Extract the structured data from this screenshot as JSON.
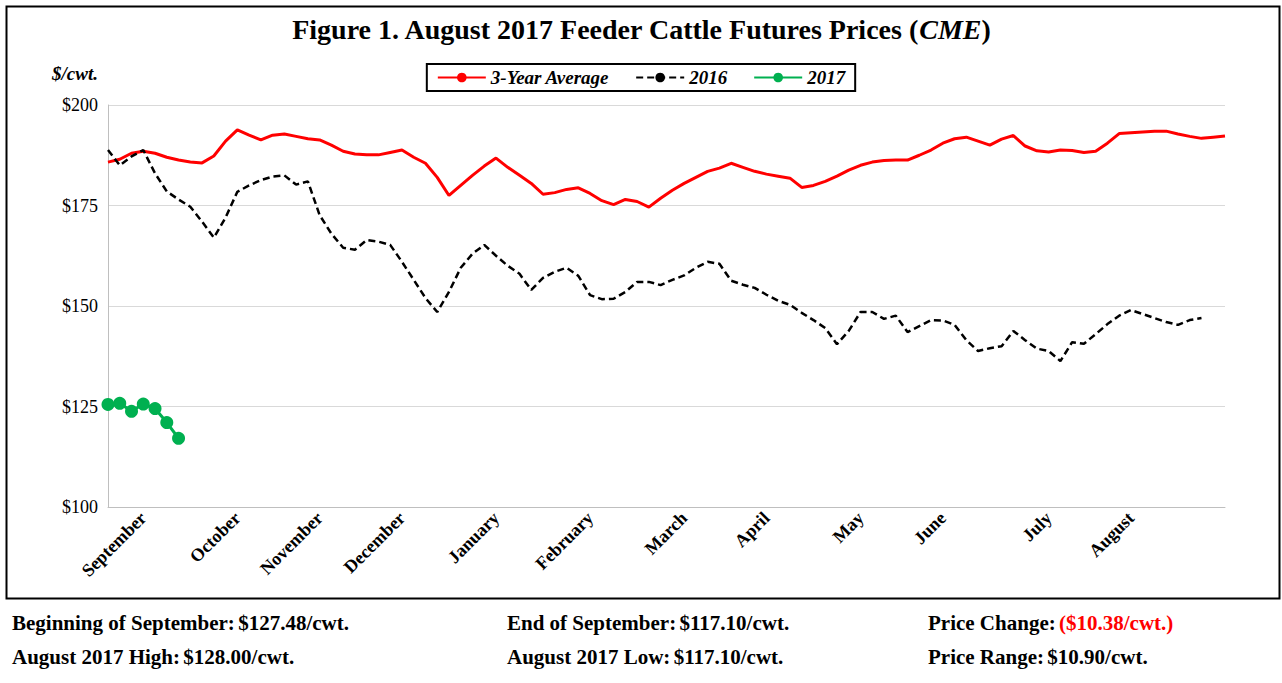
{
  "chart_data": {
    "type": "line",
    "title": "Figure 1. August 2017 Feeder Cattle Futures Prices (CME)",
    "ylabel": "$/cwt.",
    "legend": "top",
    "grid": true,
    "ylim": [
      100,
      200
    ],
    "yticks": [
      {
        "value": 100,
        "label": "$100"
      },
      {
        "value": 125,
        "label": "$125"
      },
      {
        "value": 150,
        "label": "$150"
      },
      {
        "value": 175,
        "label": "$175"
      },
      {
        "value": 200,
        "label": "$200"
      }
    ],
    "categories": [
      null,
      null,
      null,
      "September",
      null,
      null,
      null,
      null,
      null,
      null,
      null,
      "October",
      null,
      null,
      null,
      null,
      null,
      null,
      "November",
      null,
      null,
      null,
      null,
      null,
      null,
      "December",
      null,
      null,
      null,
      null,
      null,
      null,
      null,
      "January",
      null,
      null,
      null,
      null,
      null,
      null,
      null,
      "February",
      null,
      null,
      null,
      null,
      null,
      null,
      null,
      "March",
      null,
      null,
      null,
      null,
      null,
      null,
      "April",
      null,
      null,
      null,
      null,
      null,
      null,
      null,
      "May",
      null,
      null,
      null,
      null,
      null,
      null,
      "June",
      null,
      null,
      null,
      null,
      null,
      null,
      null,
      null,
      "July",
      null,
      null,
      null,
      null,
      null,
      null,
      "August",
      null,
      null,
      null,
      null,
      null,
      null,
      null,
      null
    ],
    "series": [
      {
        "name": "3-Year Average",
        "color": "#ff0000",
        "marker": "none",
        "line_style": "solid",
        "values": [
          185.8,
          186.5,
          188,
          188.5,
          188,
          187,
          186.3,
          185.8,
          185.6,
          187.3,
          191,
          193.8,
          192.5,
          191.3,
          192.5,
          192.8,
          192.2,
          191.6,
          191.3,
          190,
          188.5,
          187.8,
          187.6,
          187.6,
          188.2,
          188.8,
          187,
          185.5,
          182,
          177.5,
          180,
          182.5,
          184.8,
          186.8,
          184.5,
          182.5,
          180.5,
          177.8,
          178.2,
          179,
          179.4,
          178,
          176.2,
          175.2,
          176.5,
          176,
          174.6,
          176.8,
          178.8,
          180.5,
          182,
          183.5,
          184.3,
          185.5,
          184.5,
          183.5,
          182.8,
          182.3,
          181.8,
          179.5,
          180,
          181,
          182.3,
          183.8,
          185,
          185.8,
          186.2,
          186.3,
          186.3,
          187.5,
          188.8,
          190.5,
          191.6,
          192,
          191,
          190,
          191.5,
          192.4,
          189.8,
          188.6,
          188.3,
          188.8,
          188.7,
          188.2,
          188.5,
          190.5,
          192.9,
          193.1,
          193.3,
          193.5,
          193.5,
          192.8,
          192.2,
          191.7,
          192,
          192.3
        ]
      },
      {
        "name": "2016",
        "color": "#000000",
        "marker": "none",
        "line_style": "dashed",
        "values": [
          188.8,
          185,
          187.2,
          188.8,
          183,
          178.5,
          176.5,
          174.7,
          171,
          167,
          172,
          178.4,
          180,
          181.3,
          182.2,
          182.5,
          180.2,
          181,
          172.6,
          168,
          164.5,
          164,
          166.4,
          166,
          165.2,
          161,
          156.5,
          152,
          148.5,
          153.5,
          159.5,
          163,
          165.2,
          162.5,
          160,
          158,
          154,
          157,
          158.5,
          159.5,
          157.5,
          152.7,
          151.7,
          151.8,
          153.5,
          156,
          156,
          155.2,
          156.5,
          157.6,
          159.5,
          161,
          160.5,
          156.3,
          155.3,
          154.5,
          152.8,
          151.3,
          150.3,
          148.3,
          146.5,
          144.5,
          140.5,
          143.8,
          148.5,
          148.5,
          146.8,
          147.6,
          143.5,
          145,
          146.5,
          146.4,
          145.3,
          141.5,
          138.8,
          139.5,
          140,
          143.8,
          141.5,
          139.4,
          138.8,
          136.3,
          141,
          140.6,
          143,
          145.5,
          147.6,
          149,
          148,
          147,
          146,
          145.3,
          146.5,
          147,
          null,
          null
        ]
      },
      {
        "name": "2017",
        "color": "#00b050",
        "marker": "circle",
        "line_style": "solid",
        "values": [
          125.5,
          125.8,
          123.8,
          125.6,
          124.5,
          121,
          117.1,
          null,
          null,
          null,
          null,
          null,
          null,
          null,
          null,
          null,
          null,
          null,
          null,
          null,
          null,
          null,
          null,
          null,
          null,
          null,
          null,
          null,
          null,
          null,
          null,
          null,
          null,
          null,
          null,
          null,
          null,
          null,
          null,
          null,
          null,
          null,
          null,
          null,
          null,
          null,
          null,
          null,
          null,
          null,
          null,
          null,
          null,
          null,
          null,
          null,
          null,
          null,
          null,
          null,
          null,
          null,
          null,
          null,
          null,
          null,
          null,
          null,
          null,
          null,
          null,
          null,
          null,
          null,
          null,
          null,
          null,
          null,
          null,
          null,
          null,
          null,
          null,
          null,
          null,
          null,
          null,
          null,
          null,
          null,
          null,
          null,
          null,
          null,
          null,
          null
        ]
      }
    ],
    "annotations": [
      [
        {
          "label": "Beginning of September:",
          "value": "$127.48/cwt."
        },
        {
          "label": "End of September:",
          "value": "$117.10/cwt."
        },
        {
          "label": "Price Change:",
          "value": "($10.38/cwt.)",
          "color": "#ff0000"
        }
      ],
      [
        {
          "label": "August 2017 High:",
          "value": "$128.00/cwt."
        },
        {
          "label": "August 2017 Low:",
          "value": "$117.10/cwt."
        },
        {
          "label": "Price Range:",
          "value": "$10.90/cwt."
        }
      ]
    ]
  }
}
